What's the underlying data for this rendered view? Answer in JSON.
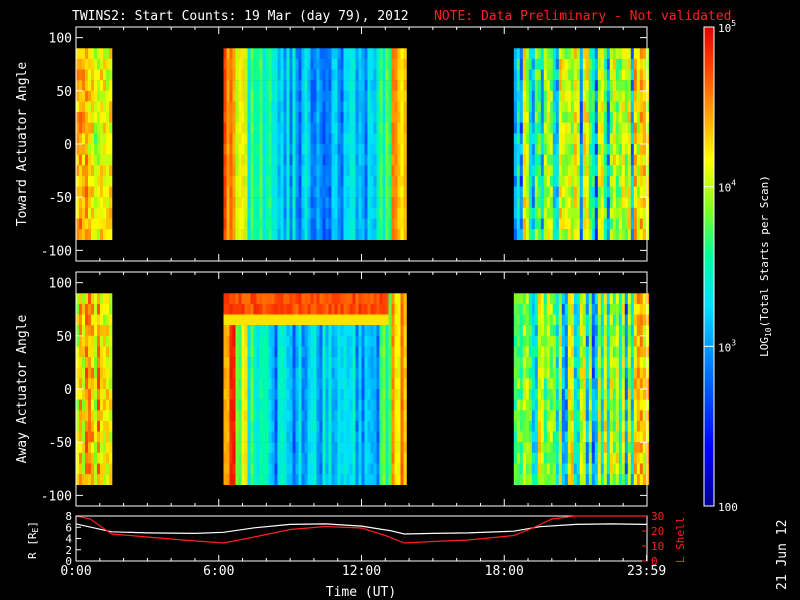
{
  "header": {
    "title": "TWINS2: Start Counts: 19 Mar (day  79), 2012",
    "note": "NOTE: Data Preliminary - Not validated"
  },
  "footer": {
    "date_stamp": "21 Jun 12"
  },
  "colors": {
    "background": "#000000",
    "axes": "#ffffff",
    "note": "#ff2020",
    "lshell": "#ff2020",
    "r_line": "#ffffff"
  },
  "chart_data": [
    {
      "type": "heatmap",
      "ylabel": "Toward Actuator Angle",
      "ylim": [
        -110,
        110
      ],
      "yticks": [
        "100",
        "50",
        "0",
        "-50",
        "-100"
      ],
      "xlim_hours": [
        0,
        24
      ],
      "data_blocks_hours": [
        [
          0,
          1.5
        ],
        [
          6.2,
          13.8
        ],
        [
          18.4,
          24
        ]
      ],
      "data_range_deg": [
        -90,
        90
      ],
      "grid": false
    },
    {
      "type": "heatmap",
      "ylabel": "Away Actuator Angle",
      "ylim": [
        -110,
        110
      ],
      "yticks": [
        "100",
        "50",
        "0",
        "-50",
        "-100"
      ],
      "xlim_hours": [
        0,
        24
      ],
      "data_blocks_hours": [
        [
          0,
          1.5
        ],
        [
          6.2,
          13.8
        ],
        [
          18.4,
          24
        ]
      ],
      "data_range_deg": [
        -90,
        90
      ],
      "grid": false
    },
    {
      "type": "line",
      "ylabel_left": "R [R",
      "ylabel_left_sub": "E",
      "ylabel_left_end": "]",
      "ylabel_right": "L Shell",
      "yticks_left": [
        "8",
        "6",
        "4",
        "2",
        "0"
      ],
      "yticks_right": [
        "30",
        "20",
        "10",
        "0"
      ],
      "xticks": [
        "0:00",
        "6:00",
        "12:00",
        "18:00",
        "23:59"
      ],
      "xlabel": "Time (UT)",
      "xlim_hours": [
        0,
        24
      ],
      "ylim_left": [
        0,
        8
      ],
      "ylim_right": [
        0,
        30
      ],
      "series": [
        {
          "axis": "left",
          "color": "#ffffff",
          "x": [
            0,
            1.5,
            3,
            5,
            6.2,
            7.5,
            9,
            10.5,
            12,
            13.2,
            13.8,
            15,
            16.5,
            18.4,
            19.5,
            21,
            22.5,
            24
          ],
          "y": [
            6.6,
            5.2,
            5.0,
            4.9,
            5.1,
            5.9,
            6.5,
            6.6,
            6.2,
            5.4,
            4.8,
            4.9,
            5.0,
            5.3,
            6.1,
            6.5,
            6.6,
            6.5
          ]
        },
        {
          "axis": "right",
          "color": "#ff2020",
          "x": [
            0,
            0.6,
            1.5,
            3,
            4.5,
            6.2,
            7.5,
            9,
            10.5,
            12,
            13,
            13.8,
            15,
            16.5,
            18.4,
            19.2,
            20,
            21,
            24
          ],
          "y": [
            30,
            28,
            18,
            16,
            14,
            12,
            16,
            21,
            23,
            22,
            17,
            12,
            13,
            14,
            17,
            22,
            28,
            30,
            30
          ]
        }
      ]
    }
  ],
  "colorbar": {
    "label_pre": "LOG",
    "label_sub": "10",
    "label_post": "(Total Starts per Scan)",
    "tick_labels": [
      {
        "base": "10",
        "exp": "5"
      },
      {
        "base": "10",
        "exp": "4"
      },
      {
        "base": "10",
        "exp": "3"
      },
      {
        "base": "100",
        "exp": ""
      }
    ],
    "scale": "log",
    "range": [
      100,
      100000
    ],
    "stops": [
      "#00008c",
      "#0000ff",
      "#0080ff",
      "#00e0ff",
      "#00ffa0",
      "#80ff20",
      "#ffff00",
      "#ffa000",
      "#ff4000",
      "#e00000"
    ]
  }
}
